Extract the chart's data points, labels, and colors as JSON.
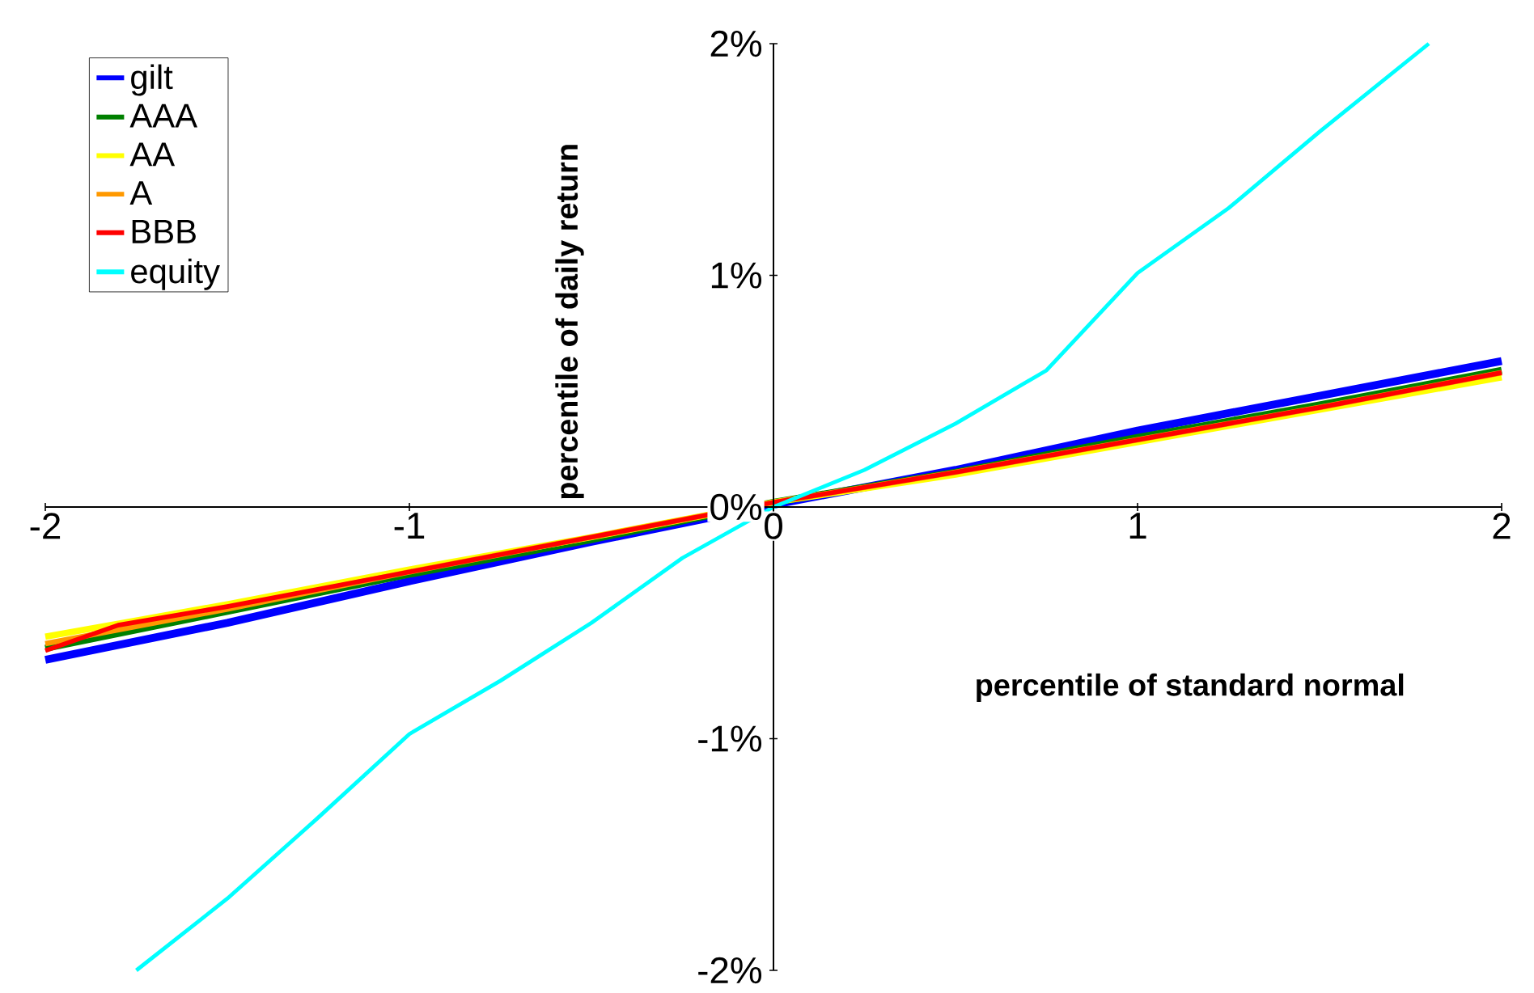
{
  "chart_data": {
    "type": "line",
    "xlabel": "percentile of standard normal",
    "ylabel": "percentile of daily return",
    "xlim": [
      -2,
      2
    ],
    "ylim": [
      -0.02,
      0.02
    ],
    "xticks": [
      -2,
      -1,
      0,
      1,
      2
    ],
    "yticks": [
      {
        "value": -0.02,
        "label": "-2%"
      },
      {
        "value": -0.01,
        "label": "-1%"
      },
      {
        "value": 0,
        "label": "0%"
      },
      {
        "value": 0.01,
        "label": "1%"
      },
      {
        "value": 0.02,
        "label": "2%"
      }
    ],
    "legend": "top left",
    "grid": false,
    "marker": "none",
    "series": [
      {
        "name": "gilt",
        "color": "#0000ff",
        "x": [
          -2,
          -1.5,
          -1,
          -0.5,
          0,
          0.5,
          1,
          1.5,
          2
        ],
        "values": [
          -0.0066,
          -0.005,
          -0.0032,
          -0.0015,
          0.0001,
          0.0016,
          0.0033,
          0.0048,
          0.0063
        ]
      },
      {
        "name": "AAA",
        "color": "#008000",
        "x": [
          -2,
          -1.5,
          -1,
          -0.5,
          0,
          0.5,
          1,
          1.5,
          2
        ],
        "values": [
          -0.0061,
          -0.0045,
          -0.0029,
          -0.0014,
          0.0002,
          0.0015,
          0.003,
          0.0044,
          0.0059
        ]
      },
      {
        "name": "AA",
        "color": "#ffff00",
        "x": [
          -2,
          -1.5,
          -1,
          -0.5,
          0,
          0.5,
          1,
          1.5,
          2
        ],
        "values": [
          -0.0056,
          -0.0042,
          -0.0027,
          -0.0013,
          0.0002,
          0.0014,
          0.0028,
          0.0042,
          0.0056
        ]
      },
      {
        "name": "A",
        "color": "#ff9900",
        "x": [
          -2,
          -1.5,
          -1,
          -0.5,
          0,
          0.5,
          1,
          1.5,
          2
        ],
        "values": [
          -0.0059,
          -0.0044,
          -0.0028,
          -0.0013,
          0.0002,
          0.0015,
          0.0029,
          0.0043,
          0.0058
        ]
      },
      {
        "name": "BBB",
        "color": "#ff0000",
        "x": [
          -2,
          -1.8,
          -1.5,
          -1,
          -0.5,
          0,
          0.5,
          1,
          1.5,
          2
        ],
        "values": [
          -0.0062,
          -0.0051,
          -0.0043,
          -0.0028,
          -0.0013,
          0.0002,
          0.0015,
          0.0029,
          0.0043,
          0.0058
        ]
      },
      {
        "name": "equity",
        "color": "#00ffff",
        "x": [
          -1.75,
          -1.5,
          -1.25,
          -1,
          -0.75,
          -0.5,
          -0.25,
          0,
          0.25,
          0.5,
          0.75,
          1,
          1.25,
          1.5,
          1.8
        ],
        "values": [
          -0.02,
          -0.0169,
          -0.0134,
          -0.0098,
          -0.0075,
          -0.005,
          -0.0022,
          0,
          0.0016,
          0.0036,
          0.0059,
          0.0101,
          0.0129,
          0.0162,
          0.02
        ]
      }
    ]
  }
}
